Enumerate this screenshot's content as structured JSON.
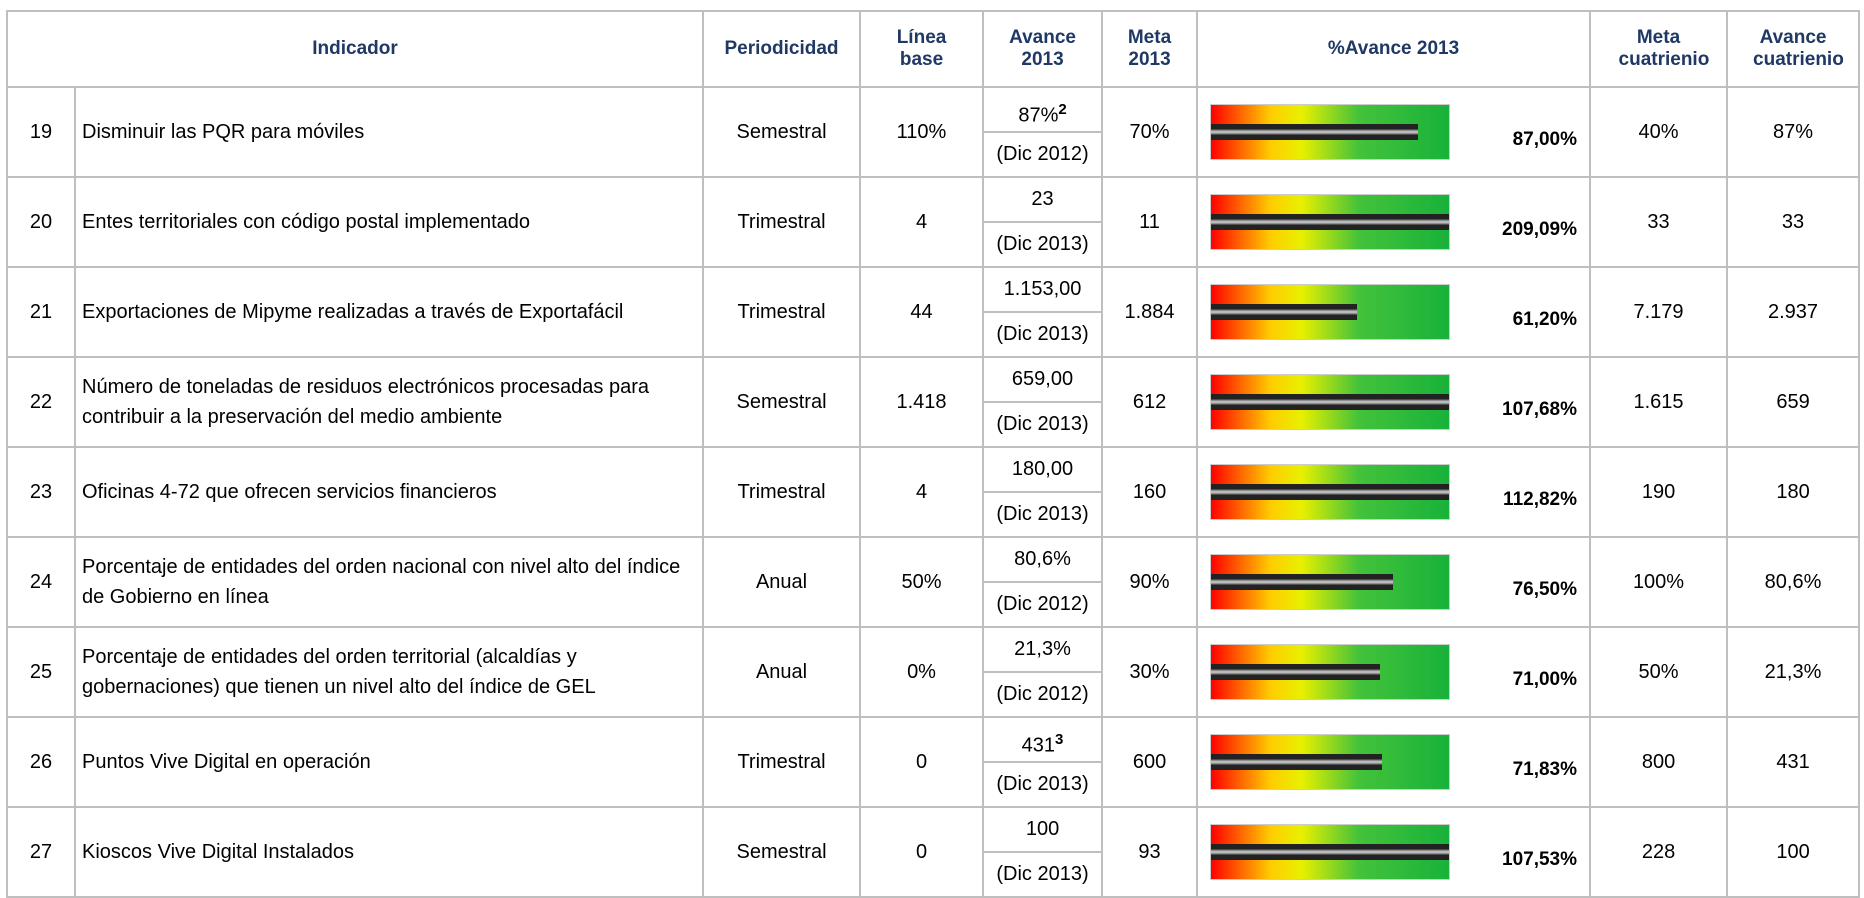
{
  "table": {
    "header": [
      "Indicador",
      "Periodicidad",
      "Línea base",
      "Avance 2013",
      "Meta 2013",
      "%Avance 2013",
      "Meta cuatrienio",
      "Avance cuatrienio"
    ],
    "rows": [
      {
        "num": "19",
        "indicador": "Disminuir las PQR para móviles",
        "periodicidad": "Semestral",
        "linea_base": "110%",
        "avance": "87%",
        "sup": "2",
        "fecha": "(Dic 2012)",
        "meta": "70%",
        "pct": 87.0,
        "pct_label": "87,00%",
        "meta_cuatrienio": "40%",
        "avance_cuatrienio": "87%"
      },
      {
        "num": "20",
        "indicador": "Entes territoriales con código postal implementado",
        "periodicidad": "Trimestral",
        "linea_base": "4",
        "avance": "23",
        "fecha": "(Dic 2013)",
        "meta": "11",
        "pct": 209.09,
        "pct_label": "209,09%",
        "meta_cuatrienio": "33",
        "avance_cuatrienio": "33"
      },
      {
        "num": "21",
        "indicador": "Exportaciones de Mipyme realizadas a través de Exportafácil",
        "periodicidad": "Trimestral",
        "linea_base": "44",
        "avance": "1.153,00",
        "fecha": "(Dic 2013)",
        "meta": "1.884",
        "pct": 61.2,
        "pct_label": "61,20%",
        "meta_cuatrienio": "7.179",
        "avance_cuatrienio": "2.937"
      },
      {
        "num": "22",
        "indicador": "Número de toneladas de residuos electrónicos procesadas para contribuir a la preservación del medio ambiente",
        "periodicidad": "Semestral",
        "linea_base": "1.418",
        "avance": "659,00",
        "fecha": "(Dic 2013)",
        "meta": "612",
        "pct": 107.68,
        "pct_label": "107,68%",
        "meta_cuatrienio": "1.615",
        "avance_cuatrienio": "659"
      },
      {
        "num": "23",
        "indicador": "Oficinas 4-72 que ofrecen servicios financieros",
        "periodicidad": "Trimestral",
        "linea_base": "4",
        "avance": "180,00",
        "fecha": "(Dic 2013)",
        "meta": "160",
        "pct": 112.82,
        "pct_label": "112,82%",
        "meta_cuatrienio": "190",
        "avance_cuatrienio": "180"
      },
      {
        "num": "24",
        "indicador": "Porcentaje de entidades del orden nacional con nivel alto del índice de Gobierno en línea",
        "periodicidad": "Anual",
        "linea_base": "50%",
        "avance": "80,6%",
        "fecha": "(Dic 2012)",
        "meta": "90%",
        "pct": 76.5,
        "pct_label": "76,50%",
        "meta_cuatrienio": "100%",
        "avance_cuatrienio": "80,6%"
      },
      {
        "num": "25",
        "indicador": "Porcentaje de entidades del orden territorial (alcaldías y gobernaciones) que tienen un nivel alto del índice de GEL",
        "periodicidad": "Anual",
        "linea_base": "0%",
        "avance": "21,3%",
        "fecha": "(Dic 2012)",
        "meta": "30%",
        "pct": 71.0,
        "pct_label": "71,00%",
        "meta_cuatrienio": "50%",
        "avance_cuatrienio": "21,3%"
      },
      {
        "num": "26",
        "indicador": "Puntos Vive Digital en operación",
        "periodicidad": "Trimestral",
        "linea_base": "0",
        "avance": "431",
        "sup": "3",
        "fecha": "(Dic 2013)",
        "meta": "600",
        "pct": 71.83,
        "pct_label": "71,83%",
        "meta_cuatrienio": "800",
        "avance_cuatrienio": "431"
      },
      {
        "num": "27",
        "indicador": "Kioscos Vive Digital Instalados",
        "periodicidad": "Semestral",
        "linea_base": "0",
        "avance": "100",
        "fecha": "(Dic 2013)",
        "meta": "93",
        "pct": 107.53,
        "pct_label": "107,53%",
        "meta_cuatrienio": "228",
        "avance_cuatrienio": "100"
      }
    ]
  }
}
